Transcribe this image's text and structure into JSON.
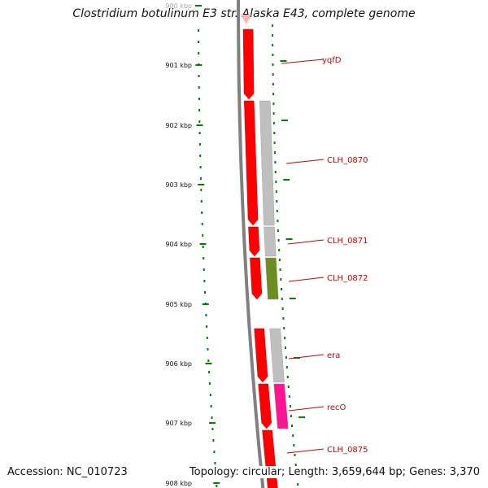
{
  "title": "Clostridium botulinum E3 str. Alaska E43, complete genome",
  "footer": {
    "accession": "Accession: NC_010723",
    "topology": "Topology: circular; Length: 3,659,644 bp; Genes: 3,370"
  },
  "colors": {
    "forward_gene": "#ff0000",
    "cds_gray": "#bfbfbf",
    "cds_green": "#6b8e23",
    "cds_pink": "#ff1493",
    "tick_green": "#008000",
    "label_red": "#cc0000",
    "backbone": "#808080"
  },
  "ruler": {
    "unit": "kbp",
    "ticks": [
      "900 kbp",
      "901 kbp",
      "902 kbp",
      "903 kbp",
      "904 kbp",
      "905 kbp",
      "906 kbp",
      "907 kbp",
      "908 kbp"
    ]
  },
  "genes": [
    {
      "label": "yqfD",
      "color": "cds_gray"
    },
    {
      "label": "CLH_0870",
      "color": "cds_gray"
    },
    {
      "label": "CLH_0871",
      "color": "cds_gray"
    },
    {
      "label": "CLH_0872",
      "color": "cds_green"
    },
    {
      "label": "era",
      "color": "cds_gray"
    },
    {
      "label": "recO",
      "color": "cds_pink"
    },
    {
      "label": "CLH_0875",
      "color": "cds_gray"
    }
  ]
}
